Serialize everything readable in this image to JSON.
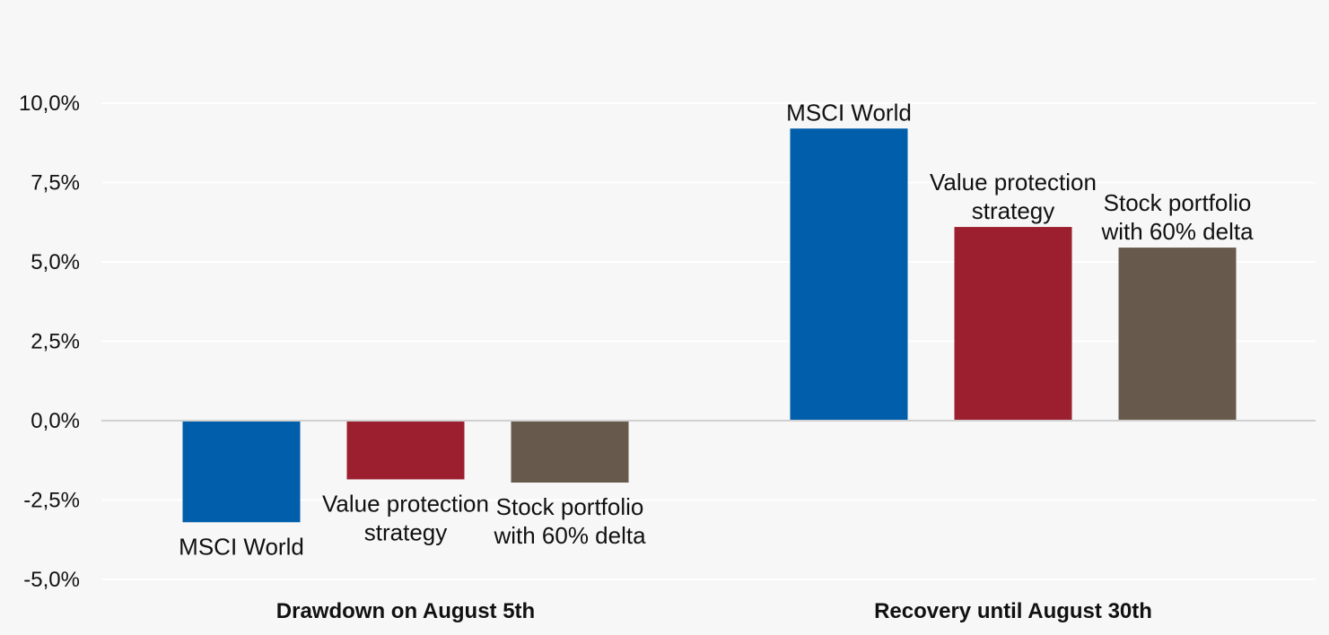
{
  "chart_data": {
    "type": "bar",
    "categories": [
      "Drawdown on August 5th",
      "Recovery until August 30th"
    ],
    "series": [
      {
        "name": "MSCI World",
        "values": [
          -3.2,
          9.2
        ],
        "color": "#005eaa"
      },
      {
        "name": "Value protection strategy",
        "values": [
          -1.85,
          6.1
        ],
        "color": "#9c1f30"
      },
      {
        "name": "Stock portfolio with 60% delta",
        "values": [
          -1.95,
          5.45
        ],
        "color": "#675a4d"
      }
    ],
    "bar_labels": [
      [
        "MSCI World"
      ],
      [
        "Value protection",
        "strategy"
      ],
      [
        "Stock portfolio",
        "with 60% delta"
      ]
    ],
    "yticks": [
      "10,0%",
      "7,5%",
      "5,0%",
      "2,5%",
      "0,0%",
      "-2,5%",
      "-5,0%"
    ],
    "ytick_values": [
      10,
      7.5,
      5,
      2.5,
      0,
      -2.5,
      -5
    ],
    "ylim": [
      -5,
      10
    ],
    "grid": true,
    "legend": "none",
    "title": "",
    "xlabel": "",
    "ylabel": ""
  },
  "colors": {
    "background": "#f7f7f7",
    "gridline": "#ffffff",
    "zero_line": "#d0d0d0"
  }
}
